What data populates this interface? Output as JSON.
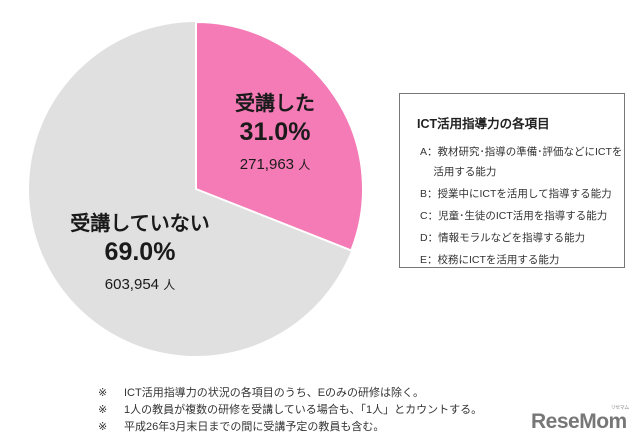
{
  "chart_data": {
    "type": "pie",
    "title": "",
    "categories": [
      "受講した",
      "受講していない"
    ],
    "values": [
      31.0,
      69.0
    ],
    "counts": [
      271963,
      603954
    ],
    "unit": "人",
    "colors": [
      "#f47bb6",
      "#e0e0e0"
    ],
    "start_angle_deg": 0,
    "direction": "clockwise"
  },
  "slices": {
    "taken": {
      "name": "受講した",
      "pct": "31.0%",
      "count": "271,963",
      "unit": "人"
    },
    "not_taken": {
      "name": "受講していない",
      "pct": "69.0%",
      "count": "603,954",
      "unit": "人"
    }
  },
  "legend": {
    "title": "ICT活用指導力の各項目",
    "items": [
      "A：教材研究･指導の準備･評価などにICTを",
      "　 活用する能力",
      "B：授業中にICTを活用して指導する能力",
      "C：児童･生徒のICT活用を指導する能力",
      "D：情報モラルなどを指導する能力",
      "E：校務にICTを活用する能力"
    ]
  },
  "notes": {
    "mark": "※",
    "lines": [
      "ICT活用指導力の状況の各項目のうち、Eのみの研修は除く。",
      "1人の教員が複数の研修を受講している場合も、「1人」とカウントする。",
      "平成26年3月末日までの間に受講予定の教員も含む。"
    ]
  },
  "logo": {
    "text": "ReseMom",
    "kana": "リセマム"
  }
}
